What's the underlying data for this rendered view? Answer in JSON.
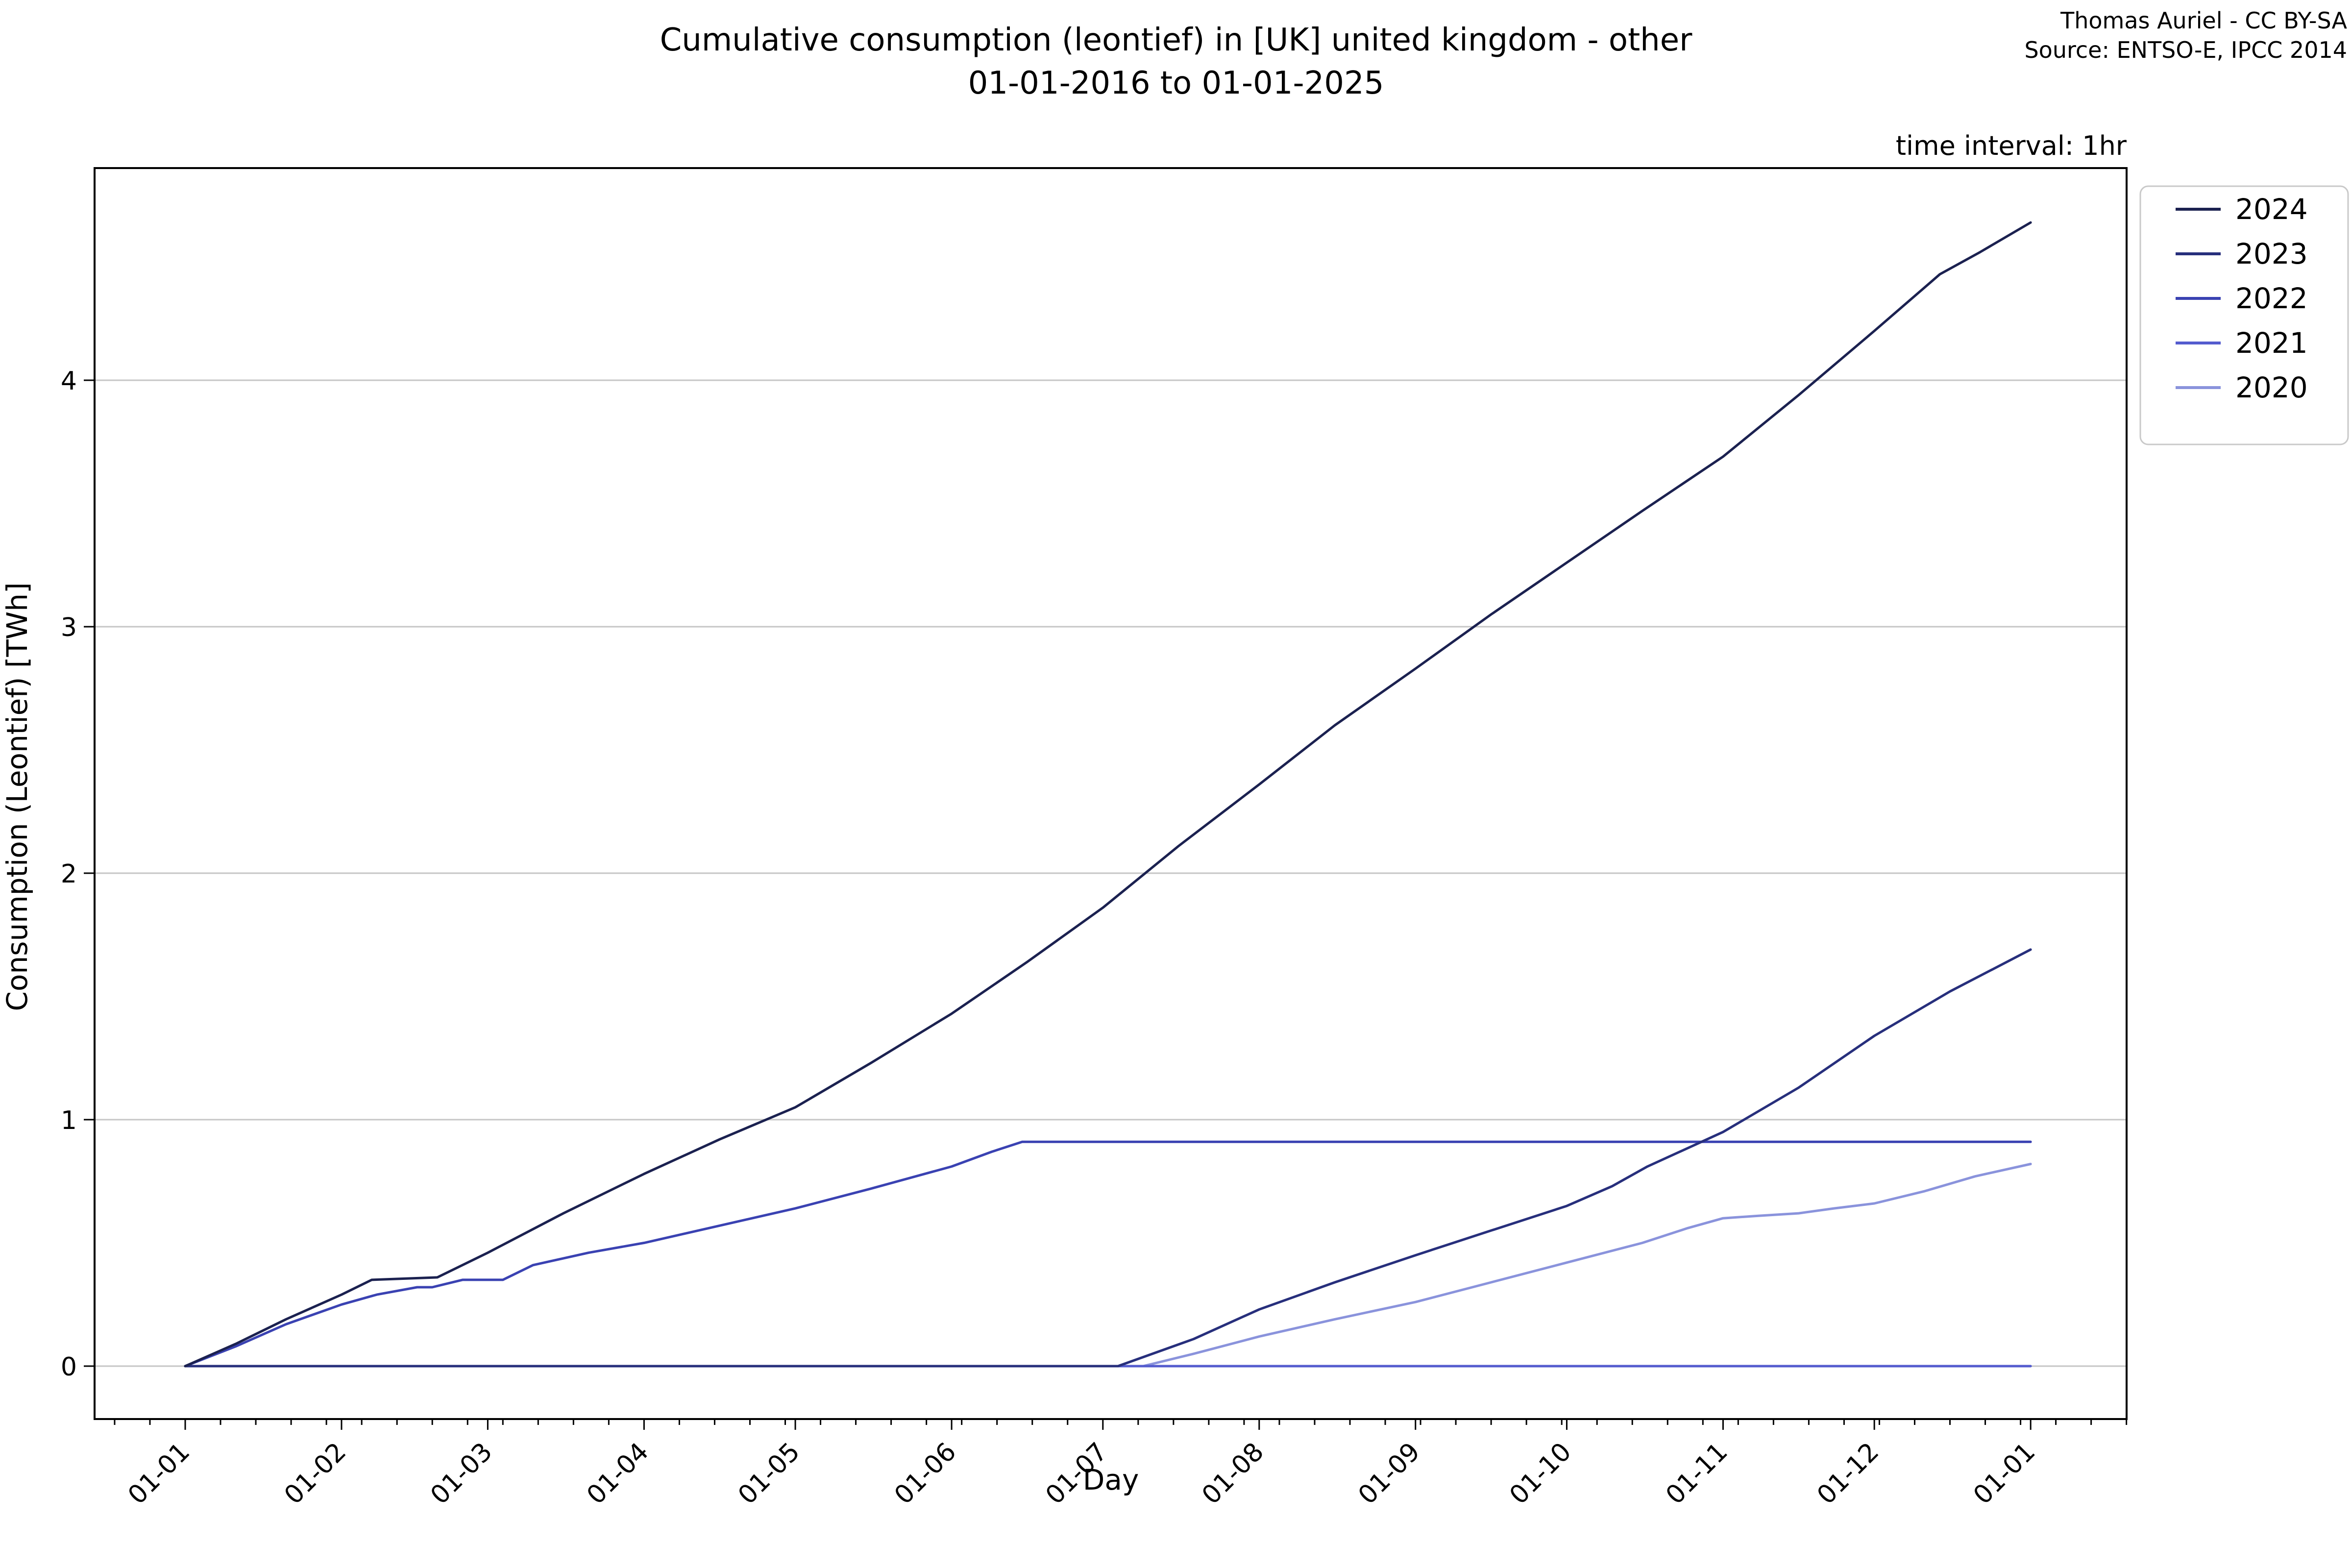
{
  "header": {
    "title_line1": "Cumulative consumption (leontief) in [UK] united kingdom - other",
    "title_line2": "01-01-2016 to 01-01-2025",
    "credit": "Thomas Auriel - CC BY-SA",
    "source": "Source: ENTSO-E, IPCC 2014"
  },
  "plot": {
    "time_interval_label": "time interval: 1hr",
    "background_color": "#ffffff",
    "grid_color": "#c6c6c6",
    "spine_color": "#000000",
    "tick_label_color": "#000000"
  },
  "chart_data": {
    "type": "line",
    "title": "Cumulative consumption (leontief) in [UK] united kingdom - other 01-01-2016 to 01-01-2025",
    "xlabel": "Day",
    "ylabel": "Consumption (Leontief) [TWh]",
    "x_unit": "day_of_year",
    "xlim": [
      -18,
      385
    ],
    "ylim": [
      -0.215,
      4.865
    ],
    "grid": "horizontal-only",
    "y_ticks": [
      0,
      1,
      2,
      3,
      4
    ],
    "x_ticks": [
      {
        "day": 0,
        "label": "01-01"
      },
      {
        "day": 31,
        "label": "01-02"
      },
      {
        "day": 60,
        "label": "01-03"
      },
      {
        "day": 91,
        "label": "01-04"
      },
      {
        "day": 121,
        "label": "01-05"
      },
      {
        "day": 152,
        "label": "01-06"
      },
      {
        "day": 182,
        "label": "01-07"
      },
      {
        "day": 213,
        "label": "01-08"
      },
      {
        "day": 244,
        "label": "01-09"
      },
      {
        "day": 274,
        "label": "01-10"
      },
      {
        "day": 305,
        "label": "01-11"
      },
      {
        "day": 335,
        "label": "01-12"
      },
      {
        "day": 366,
        "label": "01-01"
      }
    ],
    "minor_tick_interval_days": 7,
    "legend_position": "outside-upper-right",
    "series": [
      {
        "name": "2020",
        "color": "#8a93dc",
        "points": [
          [
            0,
            0
          ],
          [
            190,
            0
          ],
          [
            200,
            0.05
          ],
          [
            213,
            0.12
          ],
          [
            228,
            0.19
          ],
          [
            244,
            0.26
          ],
          [
            259,
            0.34
          ],
          [
            274,
            0.42
          ],
          [
            289,
            0.5
          ],
          [
            298,
            0.56
          ],
          [
            305,
            0.6
          ],
          [
            312,
            0.61
          ],
          [
            320,
            0.62
          ],
          [
            327,
            0.64
          ],
          [
            335,
            0.66
          ],
          [
            345,
            0.71
          ],
          [
            355,
            0.77
          ],
          [
            366,
            0.82
          ]
        ]
      },
      {
        "name": "2021",
        "color": "#545cce",
        "points": [
          [
            0,
            0
          ],
          [
            366,
            0
          ]
        ]
      },
      {
        "name": "2022",
        "color": "#3a42b2",
        "points": [
          [
            0,
            0
          ],
          [
            10,
            0.08
          ],
          [
            20,
            0.17
          ],
          [
            31,
            0.25
          ],
          [
            38,
            0.29
          ],
          [
            46,
            0.32
          ],
          [
            49,
            0.32
          ],
          [
            55,
            0.35
          ],
          [
            63,
            0.35
          ],
          [
            69,
            0.41
          ],
          [
            80,
            0.46
          ],
          [
            91,
            0.5
          ],
          [
            106,
            0.57
          ],
          [
            121,
            0.64
          ],
          [
            136,
            0.72
          ],
          [
            152,
            0.81
          ],
          [
            160,
            0.87
          ],
          [
            166,
            0.91
          ],
          [
            366,
            0.91
          ]
        ]
      },
      {
        "name": "2023",
        "color": "#272f7c",
        "points": [
          [
            0,
            0
          ],
          [
            185,
            0
          ],
          [
            200,
            0.11
          ],
          [
            213,
            0.23
          ],
          [
            228,
            0.34
          ],
          [
            244,
            0.45
          ],
          [
            259,
            0.55
          ],
          [
            274,
            0.65
          ],
          [
            283,
            0.73
          ],
          [
            290,
            0.81
          ],
          [
            305,
            0.95
          ],
          [
            320,
            1.13
          ],
          [
            335,
            1.34
          ],
          [
            350,
            1.52
          ],
          [
            366,
            1.69
          ]
        ]
      },
      {
        "name": "2024",
        "color": "#1b2150",
        "points": [
          [
            0,
            0
          ],
          [
            10,
            0.09
          ],
          [
            20,
            0.19
          ],
          [
            31,
            0.29
          ],
          [
            37,
            0.35
          ],
          [
            50,
            0.36
          ],
          [
            60,
            0.46
          ],
          [
            75,
            0.62
          ],
          [
            91,
            0.78
          ],
          [
            106,
            0.92
          ],
          [
            121,
            1.05
          ],
          [
            136,
            1.23
          ],
          [
            152,
            1.43
          ],
          [
            167,
            1.64
          ],
          [
            182,
            1.86
          ],
          [
            197,
            2.11
          ],
          [
            213,
            2.36
          ],
          [
            228,
            2.6
          ],
          [
            244,
            2.83
          ],
          [
            259,
            3.05
          ],
          [
            274,
            3.26
          ],
          [
            289,
            3.47
          ],
          [
            305,
            3.69
          ],
          [
            320,
            3.94
          ],
          [
            335,
            4.2
          ],
          [
            348,
            4.43
          ],
          [
            356,
            4.52
          ],
          [
            366,
            4.64
          ]
        ]
      }
    ]
  }
}
